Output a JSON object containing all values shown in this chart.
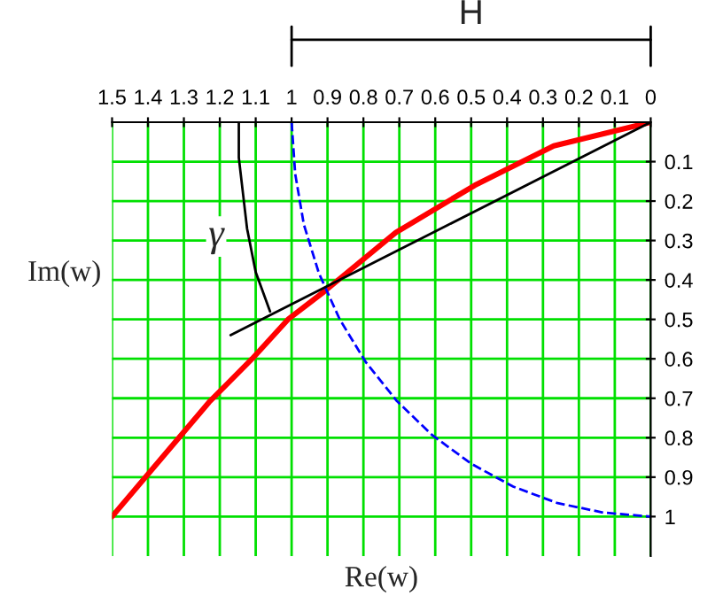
{
  "chart_data": {
    "type": "line",
    "xlabel": "Re(w)",
    "ylabel": "Im(w)",
    "annotations": [
      "H",
      {
        "text": "γ",
        "x": -1.21,
        "y": -0.29
      }
    ],
    "grid": true,
    "xlim": [
      -1.5,
      0
    ],
    "ylim": [
      -1.1,
      0
    ],
    "xticks": [
      {
        "value": -1.5,
        "label": "1.5"
      },
      {
        "value": -1.4,
        "label": "1.4"
      },
      {
        "value": -1.3,
        "label": "1.3"
      },
      {
        "value": -1.2,
        "label": "1.2"
      },
      {
        "value": -1.1,
        "label": "1.1"
      },
      {
        "value": -1.0,
        "label": "1"
      },
      {
        "value": -0.9,
        "label": "0.9"
      },
      {
        "value": -0.8,
        "label": "0.8"
      },
      {
        "value": -0.7,
        "label": "0.7"
      },
      {
        "value": -0.6,
        "label": "0.6"
      },
      {
        "value": -0.5,
        "label": "0.5"
      },
      {
        "value": -0.4,
        "label": "0.4"
      },
      {
        "value": -0.3,
        "label": "0.3"
      },
      {
        "value": -0.2,
        "label": "0.2"
      },
      {
        "value": -0.1,
        "label": "0.1"
      },
      0
    ],
    "yticks": [
      {
        "value": -0.1,
        "label": "0.1"
      },
      {
        "value": -0.2,
        "label": "0.2"
      },
      {
        "value": -0.3,
        "label": "0.3"
      },
      {
        "value": -0.4,
        "label": "0.4"
      },
      {
        "value": -0.5,
        "label": "0.5"
      },
      {
        "value": -0.6,
        "label": "0.6"
      },
      {
        "value": -0.7,
        "label": "0.7"
      },
      {
        "value": -0.8,
        "label": "0.8"
      },
      {
        "value": -0.9,
        "label": "0.9"
      },
      {
        "value": -1.0,
        "label": "1"
      }
    ],
    "series": [
      {
        "color": "#ff0000",
        "line_style": "solid",
        "x": [
          0,
          -0.27,
          -0.49,
          -0.71,
          -0.91,
          -1.01,
          -1.11,
          -1.23,
          -1.5
        ],
        "values": [
          0,
          -0.06,
          -0.16,
          -0.28,
          -0.43,
          -0.5,
          -0.6,
          -0.71,
          -1.0
        ]
      },
      {
        "color": "#0000ff",
        "line_style": "dashed",
        "x": [
          -1.0,
          -0.99,
          -0.966,
          -0.924,
          -0.866,
          -0.793,
          -0.707,
          -0.609,
          -0.5,
          -0.383,
          -0.259,
          -0.131,
          0
        ],
        "values": [
          0,
          -0.131,
          -0.259,
          -0.383,
          -0.5,
          -0.609,
          -0.707,
          -0.793,
          -0.866,
          -0.924,
          -0.966,
          -0.99,
          -1.0
        ]
      },
      {
        "color": "#000000",
        "line_style": "solid",
        "x": [
          0,
          -1.17
        ],
        "values": [
          0,
          -0.54
        ]
      },
      {
        "color": "#000000",
        "line_style": "solid",
        "x": [
          -1.147,
          -1.147,
          -1.124,
          -1.1,
          -1.06
        ],
        "values": [
          0,
          -0.09,
          -0.27,
          -0.38,
          -0.48
        ]
      }
    ]
  }
}
